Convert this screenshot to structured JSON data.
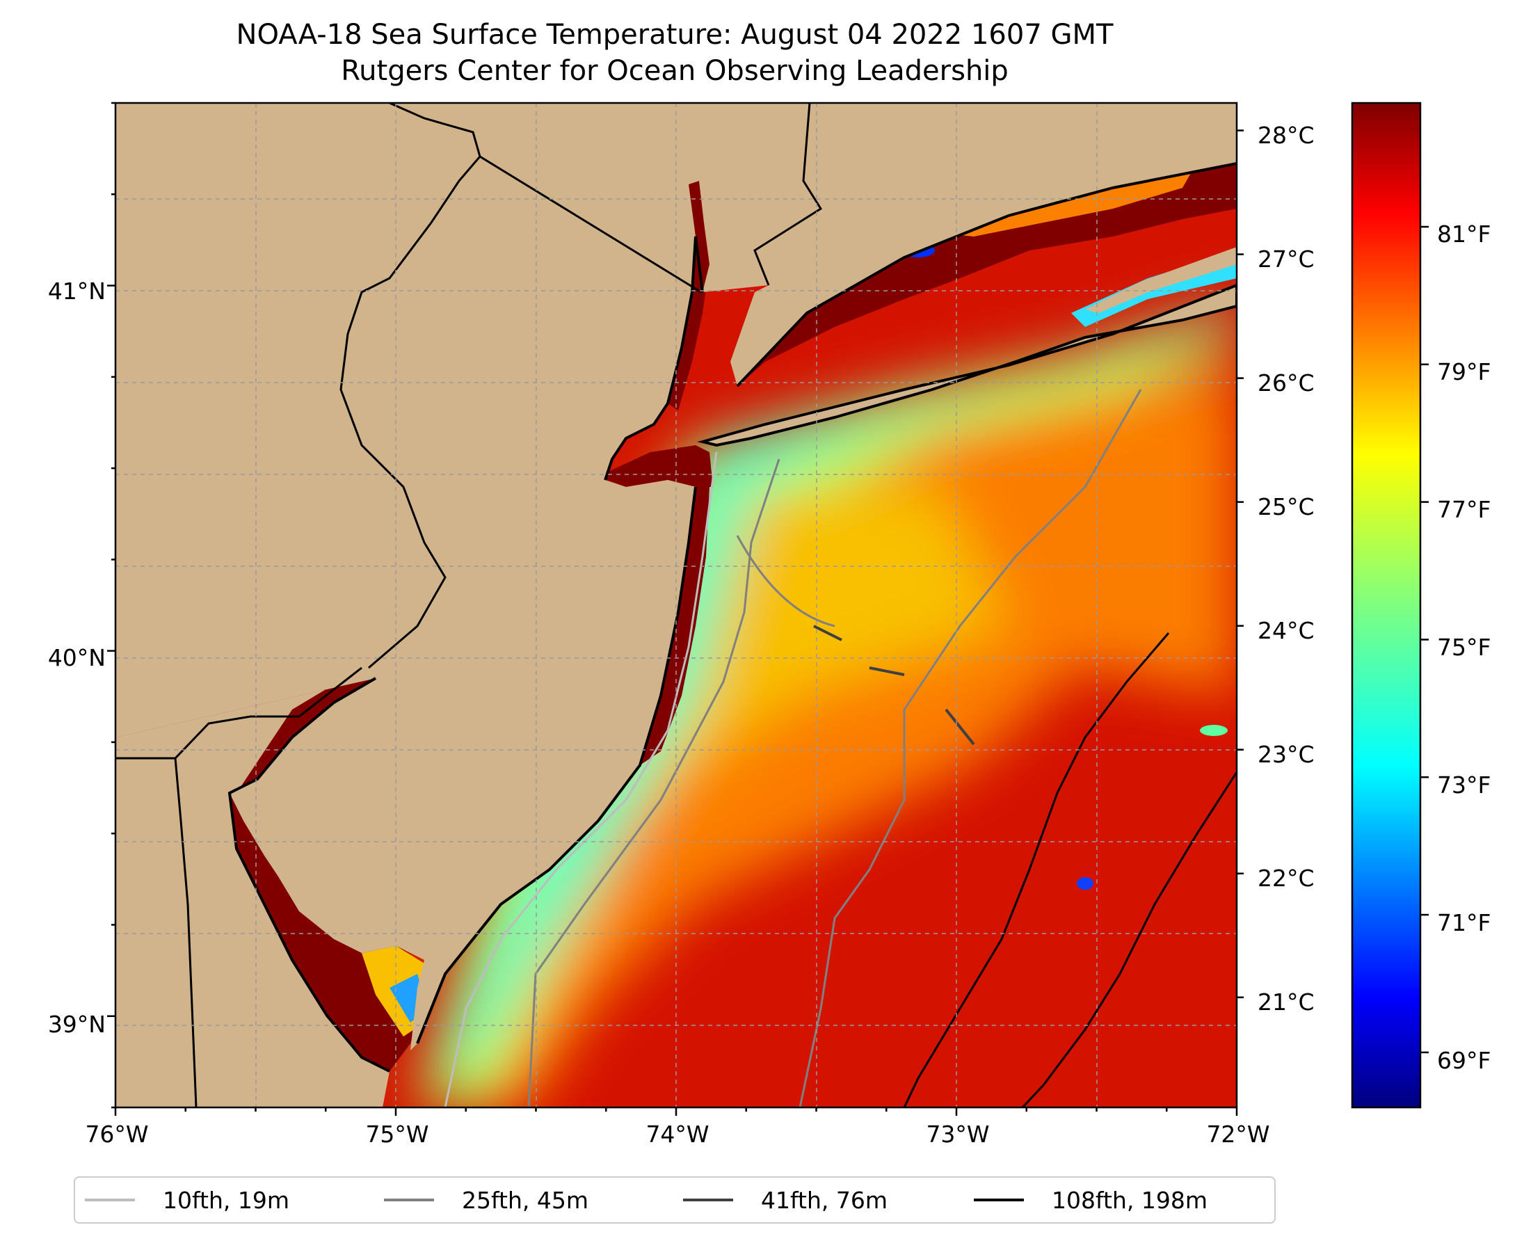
{
  "title": {
    "line1": "NOAA-18 Sea Surface Temperature: August 04 2022 1607 GMT",
    "line2": "Rutgers Center for Ocean Observing Leadership"
  },
  "map": {
    "lon_range": [
      -76,
      -72
    ],
    "lat_range": [
      38.75,
      41.5
    ],
    "x_ticks": [
      "76°W",
      "75°W",
      "74°W",
      "73°W",
      "72°W"
    ],
    "y_ticks": [
      "41°N",
      "40°N",
      "39°N"
    ],
    "land_color": "#d2b48c",
    "water_colors": {
      "warm": "#d41200",
      "orange": "#fb7d00",
      "yellow": "#f2e000",
      "cyan": "#5effa0",
      "hot": "#800000"
    }
  },
  "celsius_axis": {
    "labels": [
      "28°C",
      "27°C",
      "26°C",
      "25°C",
      "24°C",
      "23°C",
      "22°C",
      "21°C"
    ],
    "values": [
      28,
      27,
      26,
      25,
      24,
      23,
      22,
      21
    ]
  },
  "colorbar": {
    "colormap": "jet",
    "range_f": [
      68.2,
      82.8
    ],
    "labels": [
      "81°F",
      "79°F",
      "77°F",
      "75°F",
      "73°F",
      "71°F",
      "69°F"
    ],
    "values": [
      81,
      79,
      77,
      75,
      73,
      71,
      69
    ]
  },
  "legend": {
    "items": [
      {
        "label": "10fth, 19m",
        "color": "#bdbdbd"
      },
      {
        "label": "25fth, 45m",
        "color": "#808080"
      },
      {
        "label": "41fth, 76m",
        "color": "#404040"
      },
      {
        "label": "108fth, 198m",
        "color": "#000000"
      }
    ]
  }
}
